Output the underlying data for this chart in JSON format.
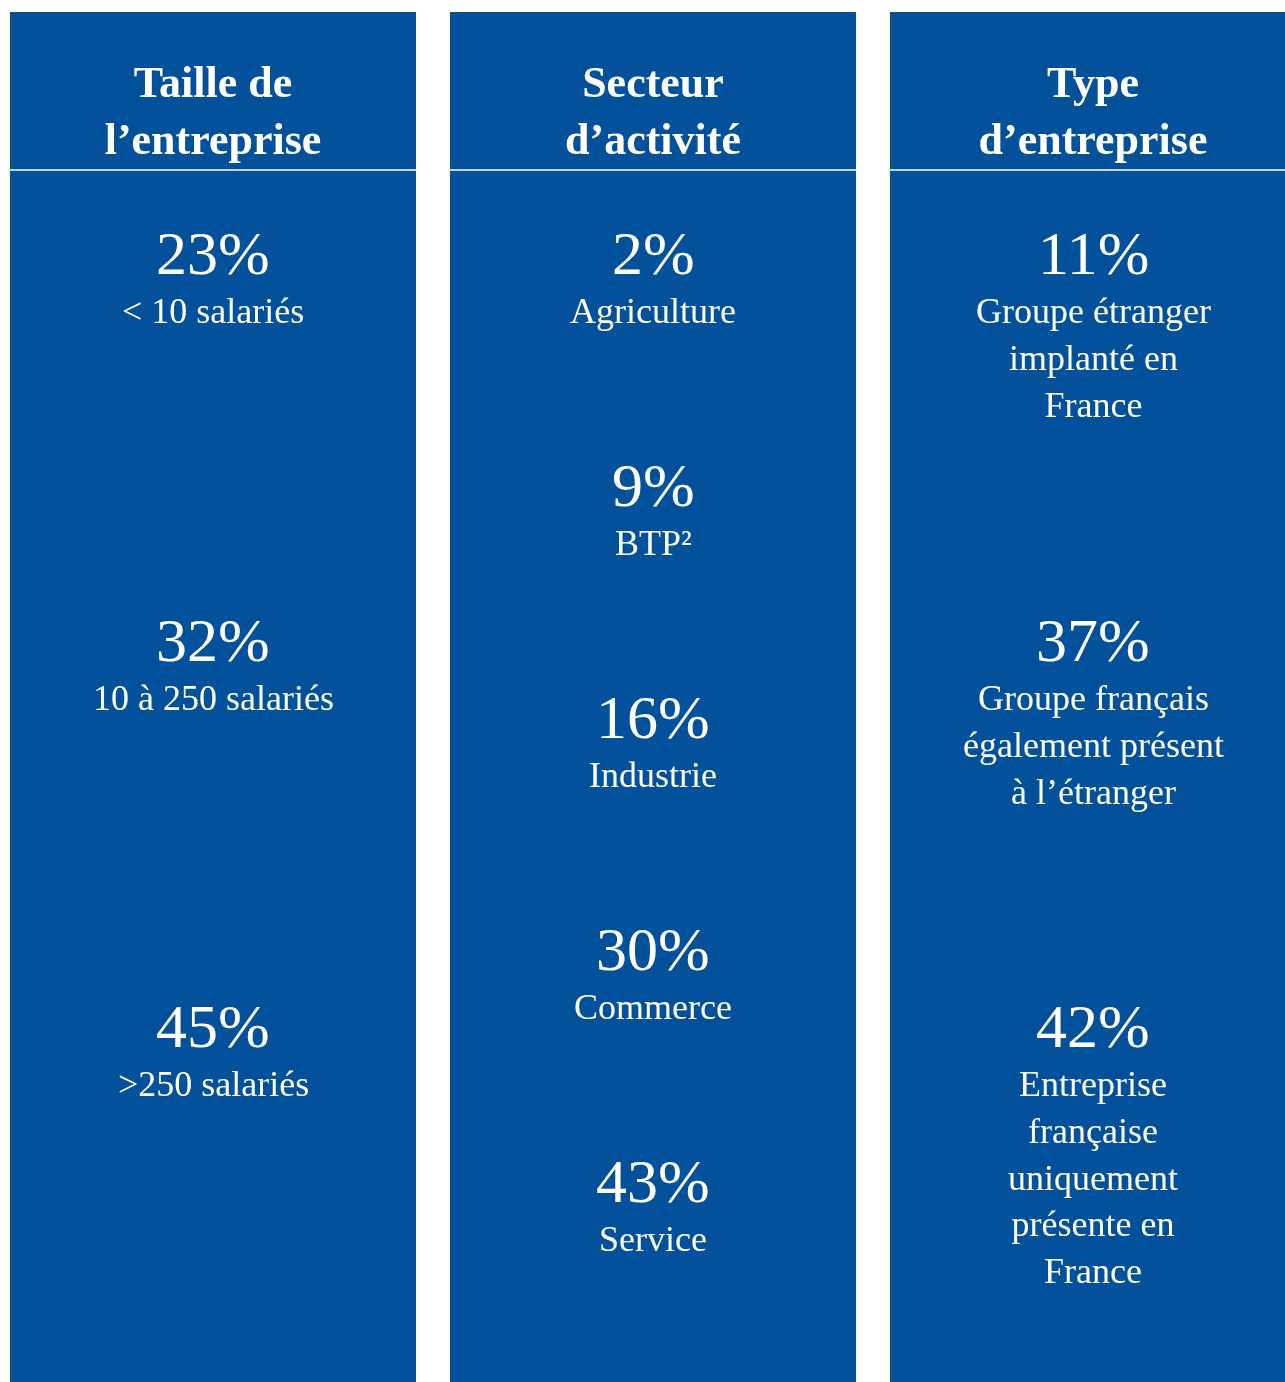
{
  "chart_data": [
    {
      "type": "other",
      "title": "Taille de l’entreprise",
      "color": "#03519b",
      "categories": [
        "< 10 salariés",
        "10 à 250 salariés",
        ">250 salariés"
      ],
      "values": [
        23,
        32,
        45
      ],
      "value_labels": [
        "23%",
        "32%",
        "45%"
      ]
    },
    {
      "type": "other",
      "title": "Secteur d’activité",
      "color": "#03519b",
      "categories": [
        "Agriculture",
        "BTP²",
        "Industrie",
        "Commerce",
        "Service"
      ],
      "values": [
        2,
        9,
        16,
        30,
        43
      ],
      "value_labels": [
        "2%",
        "9%",
        "16%",
        "30%",
        "43%"
      ]
    },
    {
      "type": "other",
      "title": "Type d’entreprise",
      "color": "#03519b",
      "categories": [
        "Groupe étranger implanté en France",
        "Groupe français également présent à l’étranger",
        "Entreprise française uniquement présente en France"
      ],
      "values": [
        11,
        37,
        42
      ],
      "value_labels": [
        "11%",
        "37%",
        "42%"
      ]
    }
  ]
}
